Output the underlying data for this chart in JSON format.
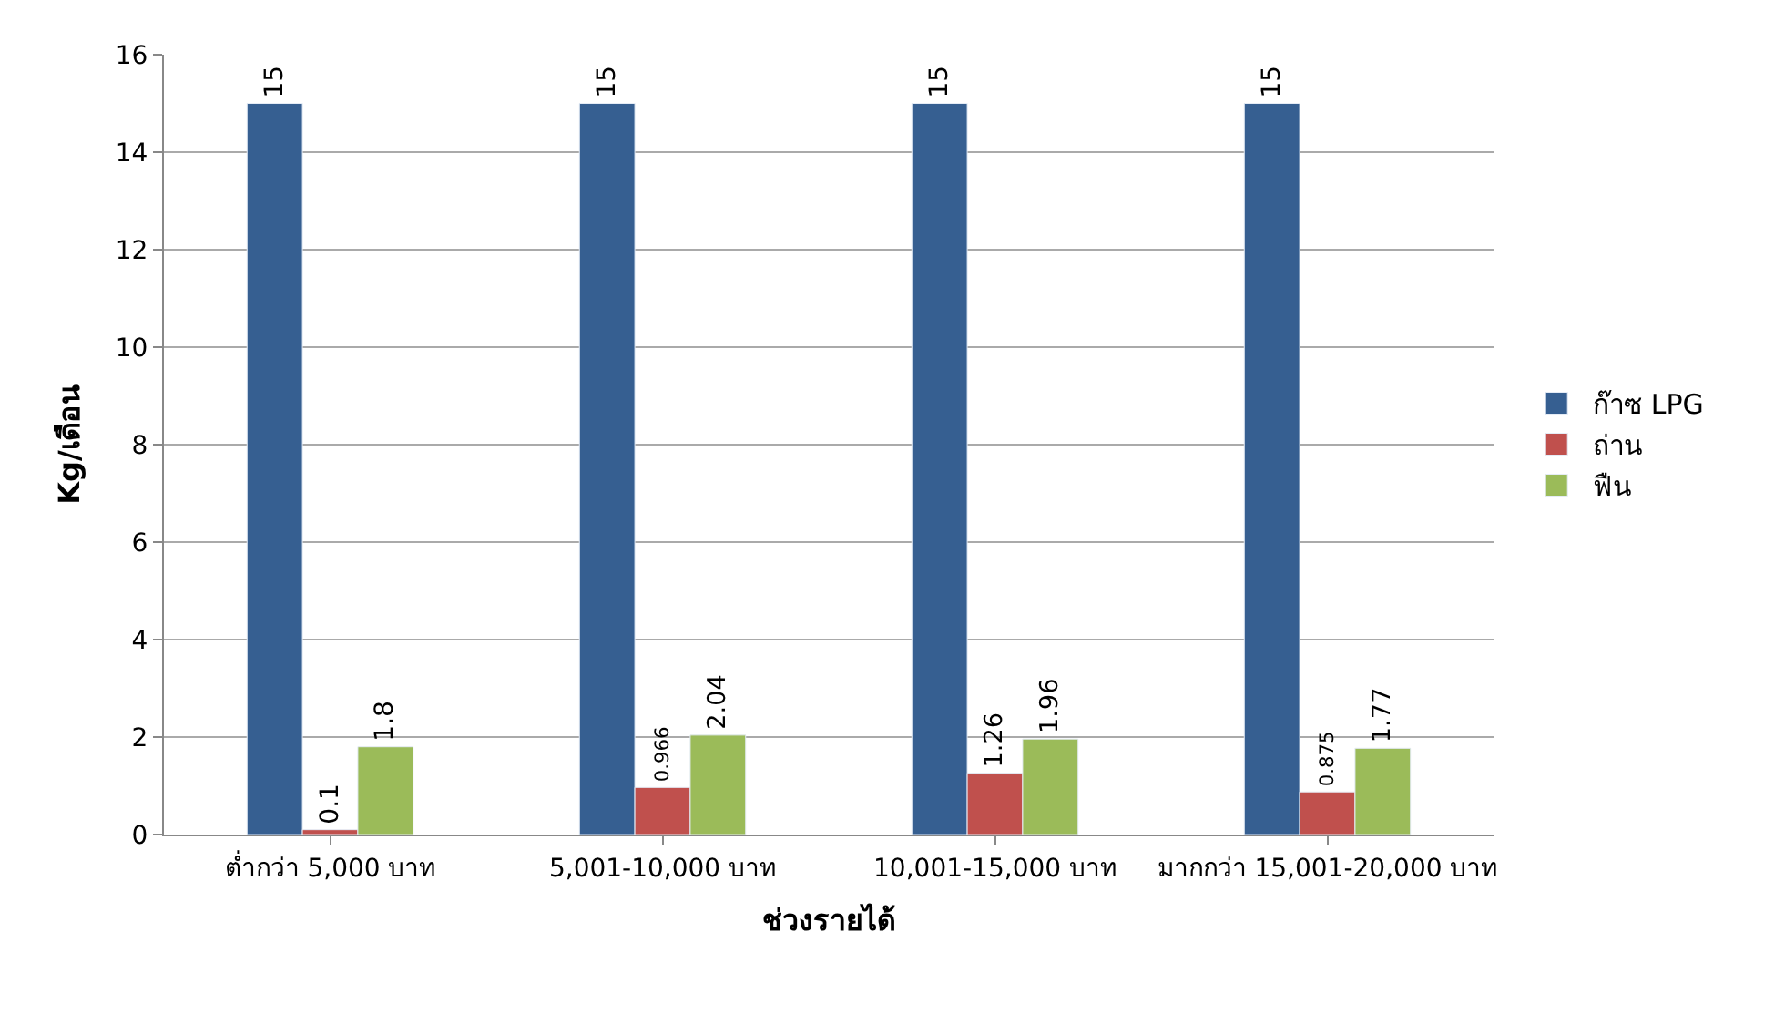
{
  "chart_data": {
    "type": "bar",
    "xlabel": "ช่วงรายได้",
    "ylabel": "Kg/เดือน",
    "categories": [
      "ต่ำกว่า 5,000 บาท",
      "5,001-10,000 บาท",
      "10,001-15,000 บาท",
      "มากกว่า 15,001-20,000 บาท"
    ],
    "series": [
      {
        "name": "ก๊าซ LPG",
        "color": "#365f91",
        "values": [
          15,
          15,
          15,
          15
        ]
      },
      {
        "name": "ถ่าน",
        "color": "#c0504d",
        "values": [
          0.1,
          0.966,
          1.26,
          0.875
        ]
      },
      {
        "name": "ฟืน",
        "color": "#9bbb59",
        "values": [
          1.8,
          2.04,
          1.96,
          1.77
        ]
      }
    ],
    "ylim": [
      0,
      16
    ],
    "yticks": [
      0,
      2,
      4,
      6,
      8,
      10,
      12,
      14,
      16
    ],
    "grid": "y",
    "legend": "right",
    "data_labels": true
  }
}
